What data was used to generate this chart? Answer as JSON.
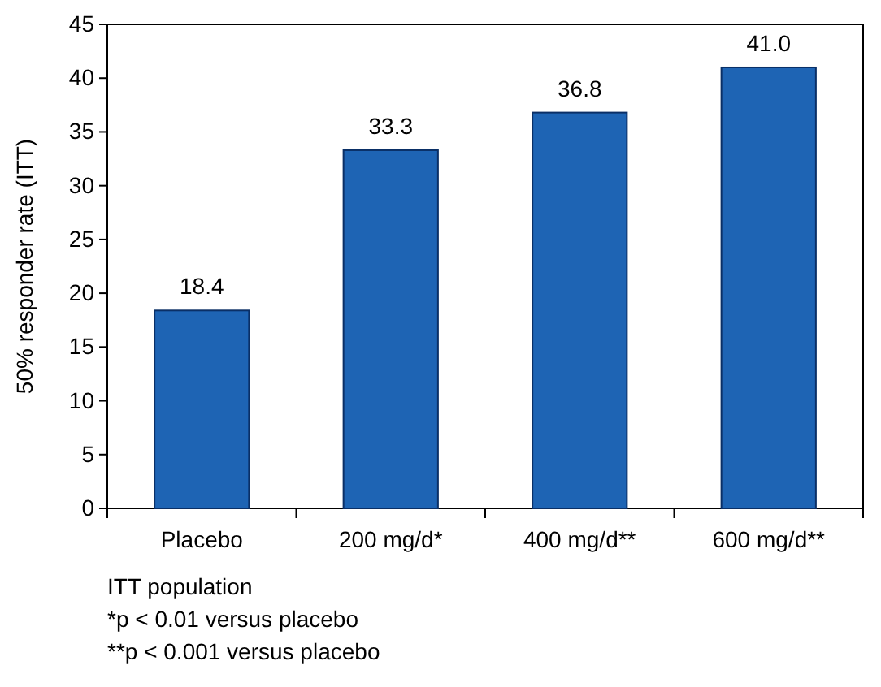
{
  "chart_data": {
    "type": "bar",
    "ylabel": "50% responder rate (ITT)",
    "categories": [
      "Placebo",
      "200 mg/d*",
      "400 mg/d**",
      "600 mg/d**"
    ],
    "values": [
      18.4,
      33.3,
      36.8,
      41.0
    ],
    "value_labels": [
      "18.4",
      "33.3",
      "36.8",
      "41.0"
    ],
    "color": "#1e64b4",
    "ylim": [
      0,
      45
    ],
    "yticks": [
      0,
      5,
      10,
      15,
      20,
      25,
      30,
      35,
      40,
      45
    ],
    "annotations": [
      "ITT population",
      "*p < 0.01 versus placebo",
      "**p < 0.001 versus placebo"
    ]
  }
}
